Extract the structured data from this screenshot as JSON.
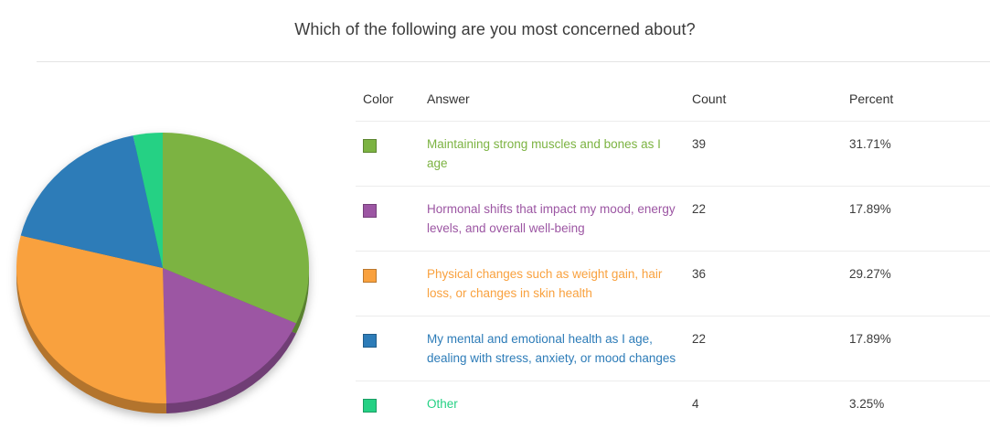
{
  "title": "Which of the following are you most concerned about?",
  "table": {
    "headers": {
      "color": "Color",
      "answer": "Answer",
      "count": "Count",
      "percent": "Percent"
    }
  },
  "chart_data": {
    "type": "pie",
    "title": "Which of the following are you most concerned about?",
    "start_angle_deg": 0,
    "direction": "clockwise",
    "legend_position": "table-right",
    "style": "3d",
    "slices": [
      {
        "label": "Maintaining strong muscles and bones as I age",
        "count": 39,
        "value": 31.71,
        "percent": "31.71%",
        "color": "#7CB342"
      },
      {
        "label": "Hormonal shifts that impact my mood, energy levels, and overall well-being",
        "count": 22,
        "value": 17.89,
        "percent": "17.89%",
        "color": "#9C56A3"
      },
      {
        "label": "Physical changes such as weight gain, hair loss, or changes in skin health",
        "count": 36,
        "value": 29.27,
        "percent": "29.27%",
        "color": "#F9A13E"
      },
      {
        "label": "My mental and emotional health as I age, dealing with stress, anxiety, or mood changes",
        "count": 22,
        "value": 17.89,
        "percent": "17.89%",
        "color": "#2D7CB8"
      },
      {
        "label": "Other",
        "count": 4,
        "value": 3.25,
        "percent": "3.25%",
        "color": "#25D184"
      }
    ]
  }
}
